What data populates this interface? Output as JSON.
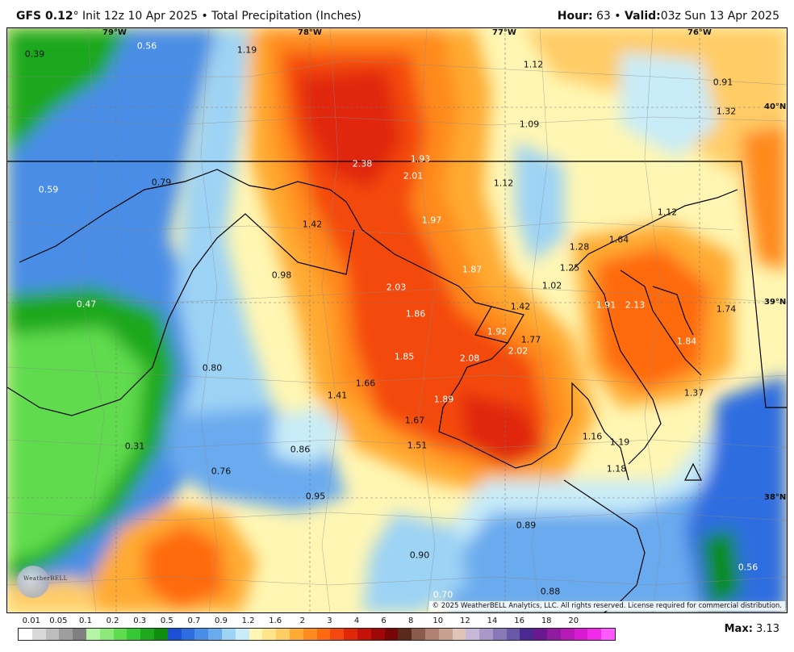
{
  "header": {
    "model": "GFS 0.12",
    "degree": "°",
    "rest": " Init 12z 10 Apr 2025 • Total Precipitation (Inches)",
    "hour_label": "Hour:",
    "hour_value": "63",
    "sep": "•",
    "valid_label": "Valid:",
    "valid_value": "03z Sun 13 Apr 2025"
  },
  "map": {
    "longitude_labels": [
      "79°W",
      "78°W",
      "77°W",
      "76°W"
    ],
    "latitude_labels": [
      "40°N",
      "39°N",
      "38°N"
    ],
    "values": [
      {
        "v": "0.39",
        "light": false
      },
      {
        "v": "0.56",
        "light": true
      },
      {
        "v": "1.19",
        "light": false
      },
      {
        "v": "1.12",
        "light": false
      },
      {
        "v": "0.91",
        "light": false
      },
      {
        "v": "1.32",
        "light": false
      },
      {
        "v": "1.09",
        "light": false
      },
      {
        "v": "2.38",
        "light": true
      },
      {
        "v": "1.93",
        "light": true
      },
      {
        "v": "2.01",
        "light": true
      },
      {
        "v": "0.59",
        "light": true
      },
      {
        "v": "0.79",
        "light": false
      },
      {
        "v": "1.12",
        "light": false
      },
      {
        "v": "1.97",
        "light": true
      },
      {
        "v": "1.42",
        "light": false
      },
      {
        "v": "1.12",
        "light": false
      },
      {
        "v": "1.28",
        "light": false
      },
      {
        "v": "1.64",
        "light": false
      },
      {
        "v": "1.25",
        "light": false
      },
      {
        "v": "1.87",
        "light": true
      },
      {
        "v": "0.98",
        "light": false
      },
      {
        "v": "2.03",
        "light": true
      },
      {
        "v": "1.02",
        "light": false
      },
      {
        "v": "0.47",
        "light": true
      },
      {
        "v": "1.86",
        "light": true
      },
      {
        "v": "1.42",
        "light": false
      },
      {
        "v": "1.91",
        "light": true
      },
      {
        "v": "2.13",
        "light": true
      },
      {
        "v": "1.74",
        "light": false
      },
      {
        "v": "1.92",
        "light": true
      },
      {
        "v": "1.77",
        "light": false
      },
      {
        "v": "2.02",
        "light": true
      },
      {
        "v": "1.84",
        "light": true
      },
      {
        "v": "1.85",
        "light": true
      },
      {
        "v": "2.08",
        "light": true
      },
      {
        "v": "0.80",
        "light": false
      },
      {
        "v": "1.66",
        "light": false
      },
      {
        "v": "1.41",
        "light": false
      },
      {
        "v": "1.37",
        "light": false
      },
      {
        "v": "1.89",
        "light": true
      },
      {
        "v": "1.67",
        "light": false
      },
      {
        "v": "1.16",
        "light": false
      },
      {
        "v": "1.19",
        "light": false
      },
      {
        "v": "0.31",
        "light": false
      },
      {
        "v": "1.51",
        "light": false
      },
      {
        "v": "0.86",
        "light": false
      },
      {
        "v": "0.76",
        "light": false
      },
      {
        "v": "1.18",
        "light": false
      },
      {
        "v": "0.95",
        "light": false
      },
      {
        "v": "0.89",
        "light": false
      },
      {
        "v": "0.90",
        "light": false
      },
      {
        "v": "0.56",
        "light": true
      },
      {
        "v": "0.88",
        "light": false
      },
      {
        "v": "0.70",
        "light": true
      }
    ],
    "copyright": "© 2025 WeatherBELL Analytics, LLC. All rights reserved. License required for commercial distribution.",
    "logo_text": "WeatherBELL"
  },
  "legend": {
    "tick_labels": [
      "0.01",
      "0.05",
      "0.1",
      "0.2",
      "0.3",
      "0.5",
      "0.7",
      "0.9",
      "1.2",
      "1.6",
      "2",
      "3",
      "4",
      "6",
      "8",
      "10",
      "12",
      "14",
      "16",
      "18",
      "20"
    ],
    "colors": [
      "#ffffff",
      "#d9d9d9",
      "#bdbdbd",
      "#9e9e9e",
      "#808080",
      "#b3f5a5",
      "#8de87a",
      "#5edb4e",
      "#35c935",
      "#1ea81e",
      "#108c10",
      "#1e4fd6",
      "#2e6de0",
      "#4a8de6",
      "#6aaaee",
      "#9dd3f5",
      "#c8ecf8",
      "#fff6b3",
      "#ffe58a",
      "#ffcc66",
      "#ffaa33",
      "#ff8a1f",
      "#ff6a10",
      "#f44810",
      "#e02808",
      "#c41208",
      "#a00808",
      "#780606",
      "#5a2a1e",
      "#8a5a4a",
      "#b08070",
      "#c8a090",
      "#e0c4b8",
      "#c8b8d8",
      "#a898c8",
      "#8878b8",
      "#6858a8",
      "#4a2a90",
      "#6a1890",
      "#901aa0",
      "#b81ab8",
      "#d81ad0",
      "#f02ae8",
      "#ff5aff"
    ],
    "max_label": "Max:",
    "max_value": "3.13"
  }
}
